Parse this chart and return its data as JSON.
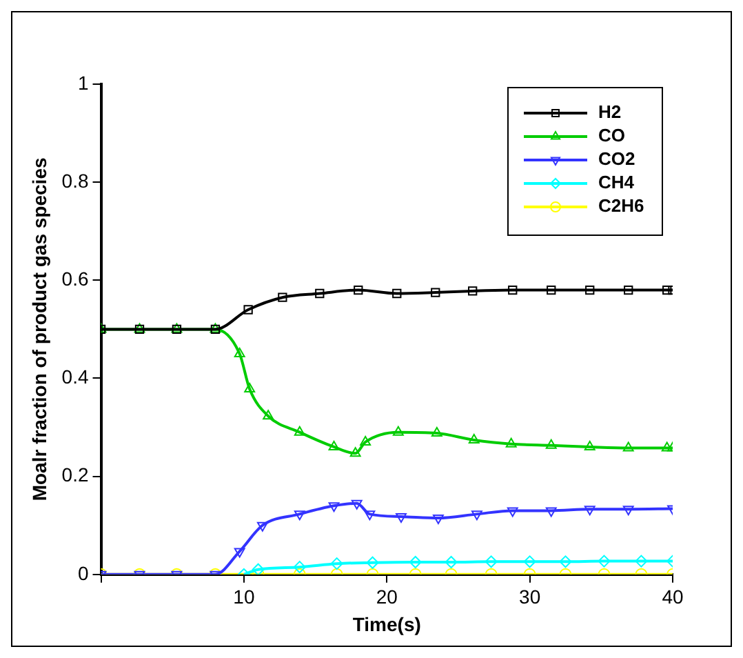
{
  "chart_data": {
    "type": "line",
    "xlabel": "Time(s)",
    "ylabel": "Moalr fraction of product gas species",
    "xlim": [
      0,
      40
    ],
    "xticks": [
      {
        "value": 0,
        "label": null
      },
      10,
      20,
      30,
      40
    ],
    "ylim": [
      0,
      1
    ],
    "yticks": [
      0,
      0.2,
      0.4,
      0.6,
      0.8,
      1
    ],
    "grid": false,
    "legend": "top right",
    "line_style": "solid",
    "series": [
      {
        "name": "H2",
        "color": "#000000",
        "marker": "square",
        "x": [
          0,
          2.7,
          5.3,
          8,
          10.3,
          12.7,
          15.3,
          18,
          20.7,
          23.4,
          26,
          28.8,
          31.5,
          34.2,
          36.9,
          39.6,
          40
        ],
        "values": [
          0.5,
          0.5,
          0.5,
          0.5,
          0.54,
          0.565,
          0.573,
          0.58,
          0.573,
          0.575,
          0.578,
          0.58,
          0.58,
          0.58,
          0.58,
          0.58,
          0.58
        ]
      },
      {
        "name": "CO",
        "color": "#00cc00",
        "marker": "triangle",
        "x": [
          0,
          2.7,
          5.3,
          8,
          9.7,
          10.4,
          11.7,
          13.9,
          16.3,
          17.8,
          18.5,
          20.8,
          23.5,
          26.1,
          28.7,
          31.5,
          34.2,
          36.9,
          39.6,
          40
        ],
        "values": [
          0.5,
          0.5,
          0.5,
          0.5,
          0.45,
          0.378,
          0.323,
          0.29,
          0.26,
          0.247,
          0.27,
          0.29,
          0.288,
          0.274,
          0.266,
          0.263,
          0.26,
          0.258,
          0.258,
          0.258
        ]
      },
      {
        "name": "CO2",
        "color": "#3333ff",
        "marker": "triangle-down",
        "x": [
          0,
          2.7,
          5.3,
          8,
          9.7,
          11.3,
          13.9,
          16.3,
          17.9,
          18.8,
          21,
          23.6,
          26.3,
          28.8,
          31.5,
          34.2,
          36.9,
          40
        ],
        "values": [
          0,
          0,
          0,
          0,
          0.047,
          0.1,
          0.123,
          0.14,
          0.145,
          0.123,
          0.118,
          0.115,
          0.123,
          0.13,
          0.13,
          0.133,
          0.133,
          0.134
        ]
      },
      {
        "name": "CH4",
        "color": "#00ffff",
        "marker": "diamond",
        "x": [
          10,
          11,
          13.9,
          16.5,
          19,
          22,
          24.5,
          27.3,
          30,
          32.5,
          35.2,
          37.8,
          40
        ],
        "values": [
          0,
          0.01,
          0.015,
          0.022,
          0.024,
          0.025,
          0.025,
          0.026,
          0.026,
          0.026,
          0.027,
          0.027,
          0.027
        ]
      },
      {
        "name": "C2H6",
        "color": "#ffff00",
        "marker": "circle",
        "x": [
          0,
          2.7,
          5.3,
          8,
          11,
          13.9,
          16.5,
          19,
          22,
          24.5,
          27.3,
          30,
          32.5,
          35.2,
          37.8,
          40
        ],
        "values": [
          0,
          0,
          0,
          0,
          0,
          0,
          0,
          0,
          0,
          0,
          0,
          0,
          0,
          0,
          0,
          0
        ]
      }
    ]
  }
}
